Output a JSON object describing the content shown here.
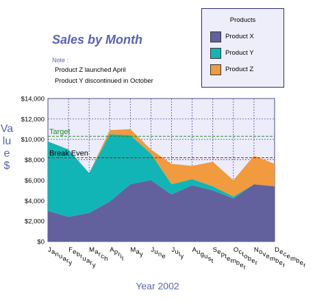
{
  "title": "Sales by Month",
  "note": {
    "heading": "Note :",
    "lines": [
      "Product Z launched April",
      "Product Y discontinued in October"
    ]
  },
  "legend": {
    "title": "Products",
    "items": [
      {
        "label": "Product X",
        "color": "#62619e"
      },
      {
        "label": "Product Y",
        "color": "#12b5b5"
      },
      {
        "label": "Product Z",
        "color": "#f19a3e"
      }
    ]
  },
  "colors": {
    "plot_background": "#ececfb",
    "grid": "#4a4a8a",
    "target_line": "#2a8a2a",
    "break_even_line": "#8a1a2a",
    "axis_title": "#5b61b8"
  },
  "chart_data": {
    "type": "area",
    "stacked": true,
    "title": "Sales by Month",
    "xlabel": "Year 2002",
    "ylabel": "Value $",
    "categories": [
      "January",
      "February",
      "March",
      "April",
      "May",
      "June",
      "July",
      "August",
      "September",
      "October",
      "November",
      "December"
    ],
    "ylim": [
      0,
      14000
    ],
    "yticks": [
      0,
      2000,
      4000,
      6000,
      8000,
      10000,
      12000,
      14000
    ],
    "ytick_labels": [
      "$0",
      "$2,000",
      "$4,000",
      "$6,000",
      "$8,000",
      "$10,000",
      "$12,000",
      "$14,000"
    ],
    "grid": true,
    "legend_position": "top-right",
    "series": [
      {
        "name": "Product X",
        "values": [
          3000,
          2400,
          2800,
          3900,
          5600,
          6000,
          4600,
          5500,
          5000,
          4200,
          5600,
          5400
        ]
      },
      {
        "name": "Product Y",
        "values": [
          6800,
          6600,
          3900,
          6600,
          4800,
          2600,
          1000,
          600,
          400,
          200,
          0,
          0
        ]
      },
      {
        "name": "Product Z",
        "values": [
          0,
          0,
          0,
          400,
          600,
          400,
          2000,
          1300,
          2400,
          1600,
          2800,
          2200
        ]
      }
    ],
    "reference_lines": [
      {
        "label": "Target",
        "value": 10300
      },
      {
        "label": "Break Even",
        "value": 8200
      }
    ]
  }
}
